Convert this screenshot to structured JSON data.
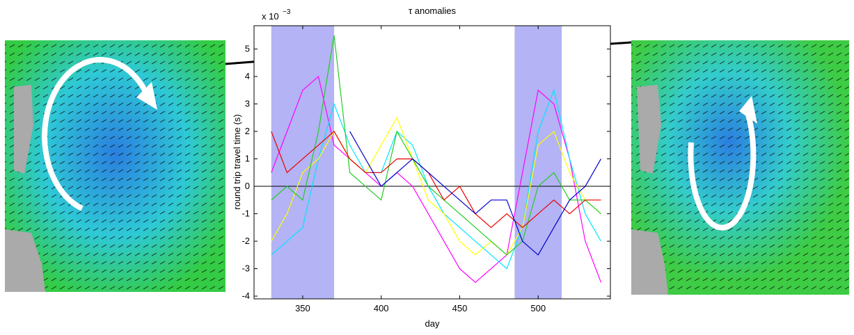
{
  "chart_data": {
    "type": "line",
    "title": "τ  anomalies",
    "multiplier": "x 10",
    "multiplier_exponent": "−3",
    "x_label": "day",
    "y_label": "round trip travel time (s)",
    "xlim": [
      319,
      546
    ],
    "ylim": [
      -4.1,
      5.85
    ],
    "xticks": [
      350,
      400,
      450,
      500
    ],
    "yticks": [
      -4,
      -3,
      -2,
      -1,
      0,
      1,
      2,
      3,
      4,
      5
    ],
    "shaded_regions": [
      [
        330,
        370
      ],
      [
        485,
        515
      ]
    ],
    "shade_color": "#b3b3f5",
    "zero_line": 0,
    "x": [
      330,
      340,
      350,
      360,
      370,
      380,
      390,
      400,
      410,
      420,
      430,
      440,
      450,
      460,
      470,
      480,
      490,
      500,
      510,
      520,
      530,
      540
    ],
    "series": [
      {
        "color": "#ff00ff",
        "values": [
          0.5,
          2.0,
          3.5,
          4.0,
          1.5,
          1.0,
          0.5,
          0.0,
          0.5,
          0.0,
          -1.0,
          -2.0,
          -3.0,
          -3.5,
          -3.0,
          -2.5,
          0.5,
          3.5,
          3.0,
          1.0,
          -2.0,
          -3.5
        ]
      },
      {
        "color": "#00e5ff",
        "values": [
          -2.5,
          -2.0,
          -1.5,
          1.0,
          3.0,
          1.5,
          0.5,
          0.5,
          2.0,
          1.5,
          0.0,
          -1.0,
          -1.5,
          -2.0,
          -2.5,
          -3.0,
          -1.5,
          2.0,
          3.5,
          1.0,
          -1.0,
          -2.0
        ]
      },
      {
        "color": "#ffff00",
        "values": [
          -2.0,
          -1.0,
          0.5,
          1.0,
          2.0,
          1.0,
          0.5,
          1.5,
          2.5,
          1.0,
          -0.5,
          -1.0,
          -2.0,
          -2.5,
          -2.0,
          -2.5,
          -1.5,
          1.5,
          2.0,
          0.5,
          -0.5,
          -1.0
        ]
      },
      {
        "color": "#22cc22",
        "values": [
          -0.5,
          0.0,
          -0.5,
          2.0,
          5.5,
          0.5,
          0.0,
          -0.5,
          2.0,
          1.0,
          0.0,
          -0.5,
          -1.0,
          -1.5,
          -2.0,
          -2.5,
          -2.0,
          0.0,
          0.5,
          -0.5,
          -0.5,
          -1.0
        ]
      },
      {
        "color": "#ee0000",
        "values": [
          2.0,
          0.5,
          1.0,
          1.5,
          2.0,
          1.0,
          0.5,
          0.5,
          1.0,
          1.0,
          0.5,
          -0.5,
          0.0,
          -1.0,
          -1.5,
          -1.0,
          -1.5,
          -1.0,
          -0.5,
          -1.0,
          -0.5,
          -0.5
        ]
      },
      {
        "color": "#0000cc",
        "values": [
          null,
          null,
          null,
          null,
          null,
          2.0,
          1.0,
          0.0,
          0.5,
          1.0,
          0.5,
          0.0,
          -0.5,
          -1.0,
          -0.5,
          -0.5,
          -2.0,
          -2.5,
          -1.5,
          -0.5,
          0.0,
          1.0
        ]
      }
    ]
  }
}
